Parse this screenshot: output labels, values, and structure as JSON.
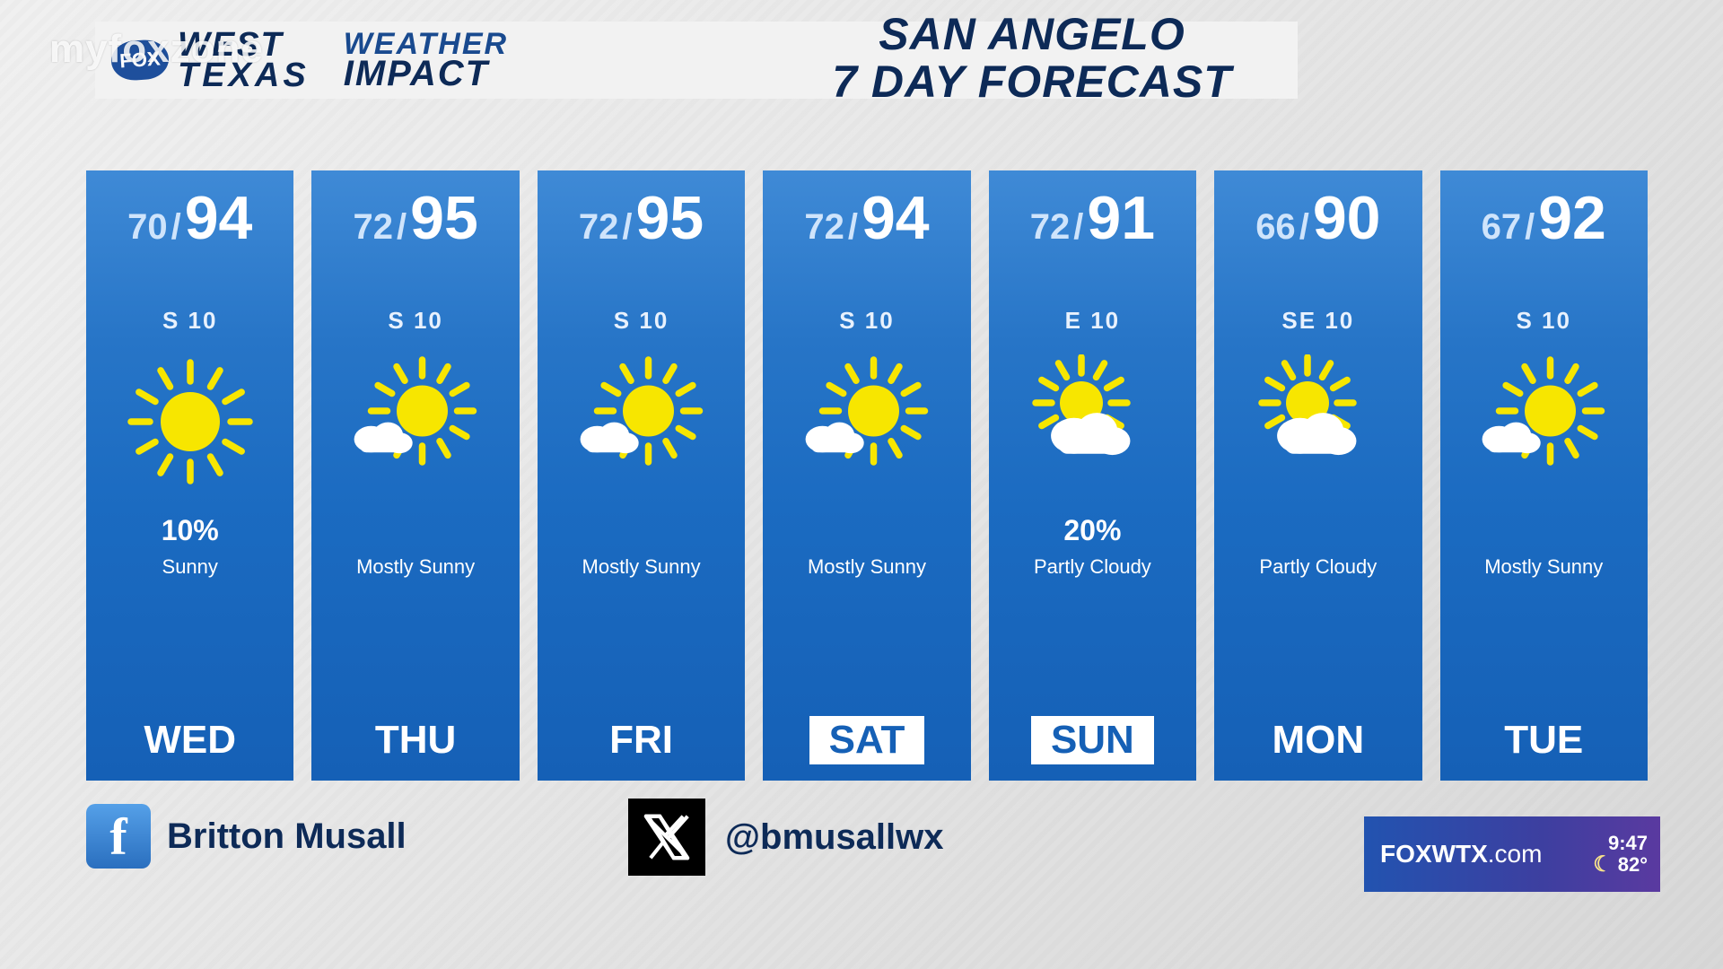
{
  "watermark": "myfoxzone",
  "header": {
    "fox": "FOX",
    "west": "WEST",
    "texas": "TEXAS",
    "weather": "WEATHER",
    "impact": "IMPACT"
  },
  "title": {
    "line1": "SAN ANGELO",
    "line2": "7 DAY FORECAST"
  },
  "style": {
    "card_gradient_top": "#3f8ad6",
    "card_gradient_bottom": "#1560b6",
    "accent_navy": "#0d2a57",
    "sun_color": "#f7e600",
    "cloud_color": "#ffffff",
    "background_top": "#f0f0f0",
    "background_bottom": "#d8d8d8"
  },
  "days": [
    {
      "lo": "70",
      "hi": "94",
      "wind": "S  10",
      "icon": "sun",
      "precip": "10%",
      "desc": "Sunny",
      "abbr": "WED",
      "weekend": false
    },
    {
      "lo": "72",
      "hi": "95",
      "wind": "S  10",
      "icon": "mostly-sunny",
      "precip": "",
      "desc": "Mostly Sunny",
      "abbr": "THU",
      "weekend": false
    },
    {
      "lo": "72",
      "hi": "95",
      "wind": "S  10",
      "icon": "mostly-sunny",
      "precip": "",
      "desc": "Mostly Sunny",
      "abbr": "FRI",
      "weekend": false
    },
    {
      "lo": "72",
      "hi": "94",
      "wind": "S  10",
      "icon": "mostly-sunny",
      "precip": "",
      "desc": "Mostly Sunny",
      "abbr": "SAT",
      "weekend": true
    },
    {
      "lo": "72",
      "hi": "91",
      "wind": "E  10",
      "icon": "partly-cloudy",
      "precip": "20%",
      "desc": "Partly Cloudy",
      "abbr": "SUN",
      "weekend": true
    },
    {
      "lo": "66",
      "hi": "90",
      "wind": "SE  10",
      "icon": "partly-cloudy",
      "precip": "",
      "desc": "Partly Cloudy",
      "abbr": "MON",
      "weekend": false
    },
    {
      "lo": "67",
      "hi": "92",
      "wind": "S  10",
      "icon": "mostly-sunny",
      "precip": "",
      "desc": "Mostly Sunny",
      "abbr": "TUE",
      "weekend": false
    }
  ],
  "social": {
    "facebook_name": "Britton Musall",
    "x_handle": "@bmusallwx"
  },
  "station": {
    "site": "FOXWTX",
    "domain": ".com",
    "clock": "9:47",
    "temp": "82°"
  }
}
